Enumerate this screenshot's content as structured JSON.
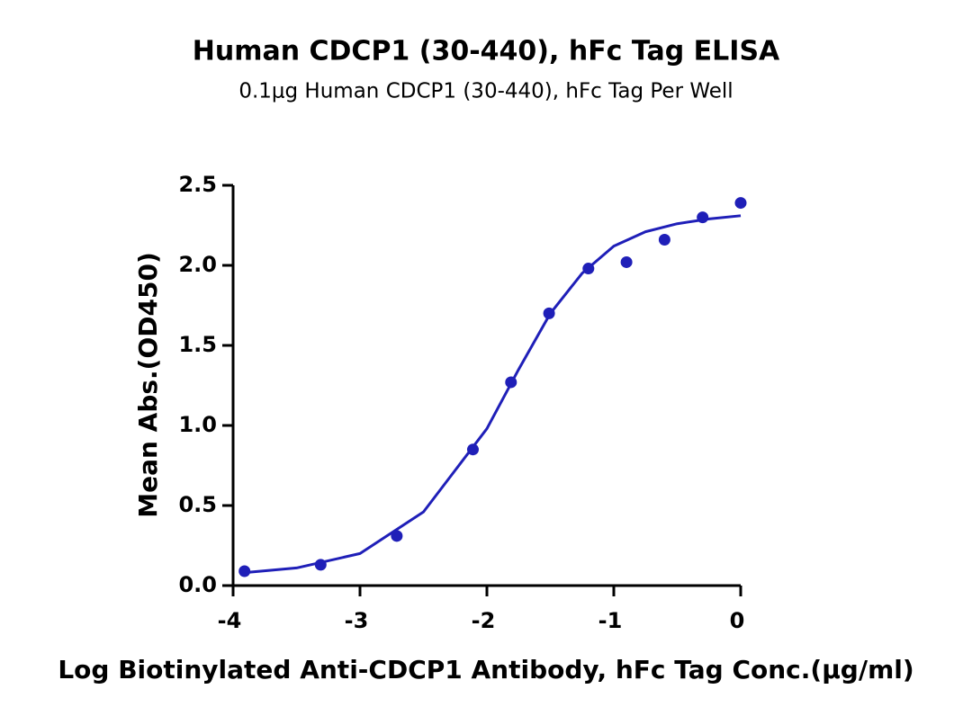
{
  "chart_data": {
    "type": "scatter",
    "title": "Human CDCP1 (30-440), hFc Tag ELISA",
    "subtitle": "0.1μg Human CDCP1 (30-440), hFc Tag Per Well",
    "x_label": "Log Biotinylated Anti-CDCP1 Antibody, hFc Tag Conc.(μg/ml)",
    "y_label": "Mean Abs.(OD450)",
    "x": [
      -3.91,
      -3.31,
      -2.71,
      -2.11,
      -1.81,
      -1.51,
      -1.2,
      -0.9,
      -0.6,
      -0.3,
      0
    ],
    "values": [
      0.09,
      0.13,
      0.31,
      0.85,
      1.27,
      1.7,
      1.98,
      2.02,
      2.16,
      2.3,
      2.39
    ],
    "color": "#1f1fb8",
    "curve": {
      "x": [
        -3.92,
        -3.5,
        -3.0,
        -2.5,
        -2.0,
        -1.75,
        -1.5,
        -1.25,
        -1.0,
        -0.75,
        -0.5,
        -0.25,
        0
      ],
      "values": [
        0.08,
        0.11,
        0.2,
        0.46,
        0.98,
        1.35,
        1.7,
        1.95,
        2.12,
        2.21,
        2.26,
        2.29,
        2.31
      ]
    },
    "xlim": [
      -4,
      0
    ],
    "ylim": [
      0,
      2.5
    ],
    "xticks": [
      -4,
      -3,
      -2,
      -1,
      0
    ],
    "yticks": [
      {
        "value": 0,
        "label": "0.0"
      },
      0.5,
      {
        "value": 1,
        "label": "1.0"
      },
      1.5,
      {
        "value": 2,
        "label": "2.0"
      },
      2.5
    ]
  }
}
